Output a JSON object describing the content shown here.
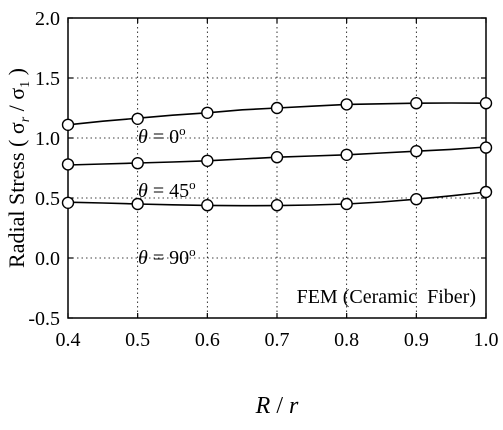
{
  "chart_data": {
    "type": "line",
    "ylabel": "Radial Stress ( σ",
    "ylabel_sub1": "r",
    "ylabel_mid": " / σ",
    "ylabel_sub2": "1",
    "ylabel_end": " )",
    "xlabel_r1": "R",
    "xlabel_mid": " / ",
    "xlabel_r2": "r",
    "xlim": [
      0.4,
      1.0
    ],
    "ylim": [
      -0.5,
      2.0
    ],
    "xticks": [
      0.4,
      0.5,
      0.6,
      0.7,
      0.8,
      0.9,
      1.0
    ],
    "yticks": [
      -0.5,
      0.0,
      0.5,
      1.0,
      1.5,
      2.0
    ],
    "xtick_labels": [
      "0.4",
      "0.5",
      "0.6",
      "0.7",
      "0.8",
      "0.9",
      "1.0"
    ],
    "ytick_labels": [
      "-0.5",
      "0.0",
      "0.5",
      "1.0",
      "1.5",
      "2.0"
    ],
    "grid": true,
    "marker": "open-circle",
    "annotation": "FEM (Ceramic  Fiber)",
    "x": [
      0.4,
      0.5,
      0.6,
      0.7,
      0.8,
      0.9,
      1.0
    ],
    "series": [
      {
        "theta_symbol": "θ",
        "angle": "0",
        "degree": "o",
        "values": [
          1.11,
          1.16,
          1.21,
          1.25,
          1.28,
          1.29,
          1.29
        ],
        "smooth": [
          [
            0.4,
            1.11
          ],
          [
            0.45,
            1.14
          ],
          [
            0.5,
            1.165
          ],
          [
            0.55,
            1.19
          ],
          [
            0.6,
            1.21
          ],
          [
            0.65,
            1.235
          ],
          [
            0.7,
            1.25
          ],
          [
            0.75,
            1.265
          ],
          [
            0.8,
            1.28
          ],
          [
            0.85,
            1.285
          ],
          [
            0.9,
            1.29
          ],
          [
            0.95,
            1.292
          ],
          [
            1.0,
            1.29
          ]
        ]
      },
      {
        "theta_symbol": "θ",
        "angle": "45",
        "degree": "o",
        "values": [
          0.78,
          0.79,
          0.81,
          0.84,
          0.86,
          0.89,
          0.92
        ],
        "smooth": [
          [
            0.4,
            0.775
          ],
          [
            0.45,
            0.783
          ],
          [
            0.5,
            0.792
          ],
          [
            0.55,
            0.8
          ],
          [
            0.6,
            0.81
          ],
          [
            0.65,
            0.825
          ],
          [
            0.7,
            0.84
          ],
          [
            0.75,
            0.85
          ],
          [
            0.8,
            0.86
          ],
          [
            0.85,
            0.875
          ],
          [
            0.9,
            0.89
          ],
          [
            0.95,
            0.905
          ],
          [
            1.0,
            0.925
          ]
        ]
      },
      {
        "theta_symbol": "θ",
        "angle": "90",
        "degree": "o",
        "values": [
          0.46,
          0.45,
          0.44,
          0.44,
          0.45,
          0.49,
          0.55
        ],
        "smooth": [
          [
            0.4,
            0.465
          ],
          [
            0.45,
            0.458
          ],
          [
            0.5,
            0.45
          ],
          [
            0.55,
            0.443
          ],
          [
            0.6,
            0.438
          ],
          [
            0.65,
            0.436
          ],
          [
            0.7,
            0.437
          ],
          [
            0.75,
            0.442
          ],
          [
            0.8,
            0.45
          ],
          [
            0.85,
            0.467
          ],
          [
            0.9,
            0.49
          ],
          [
            0.95,
            0.518
          ],
          [
            1.0,
            0.55
          ]
        ]
      }
    ]
  }
}
